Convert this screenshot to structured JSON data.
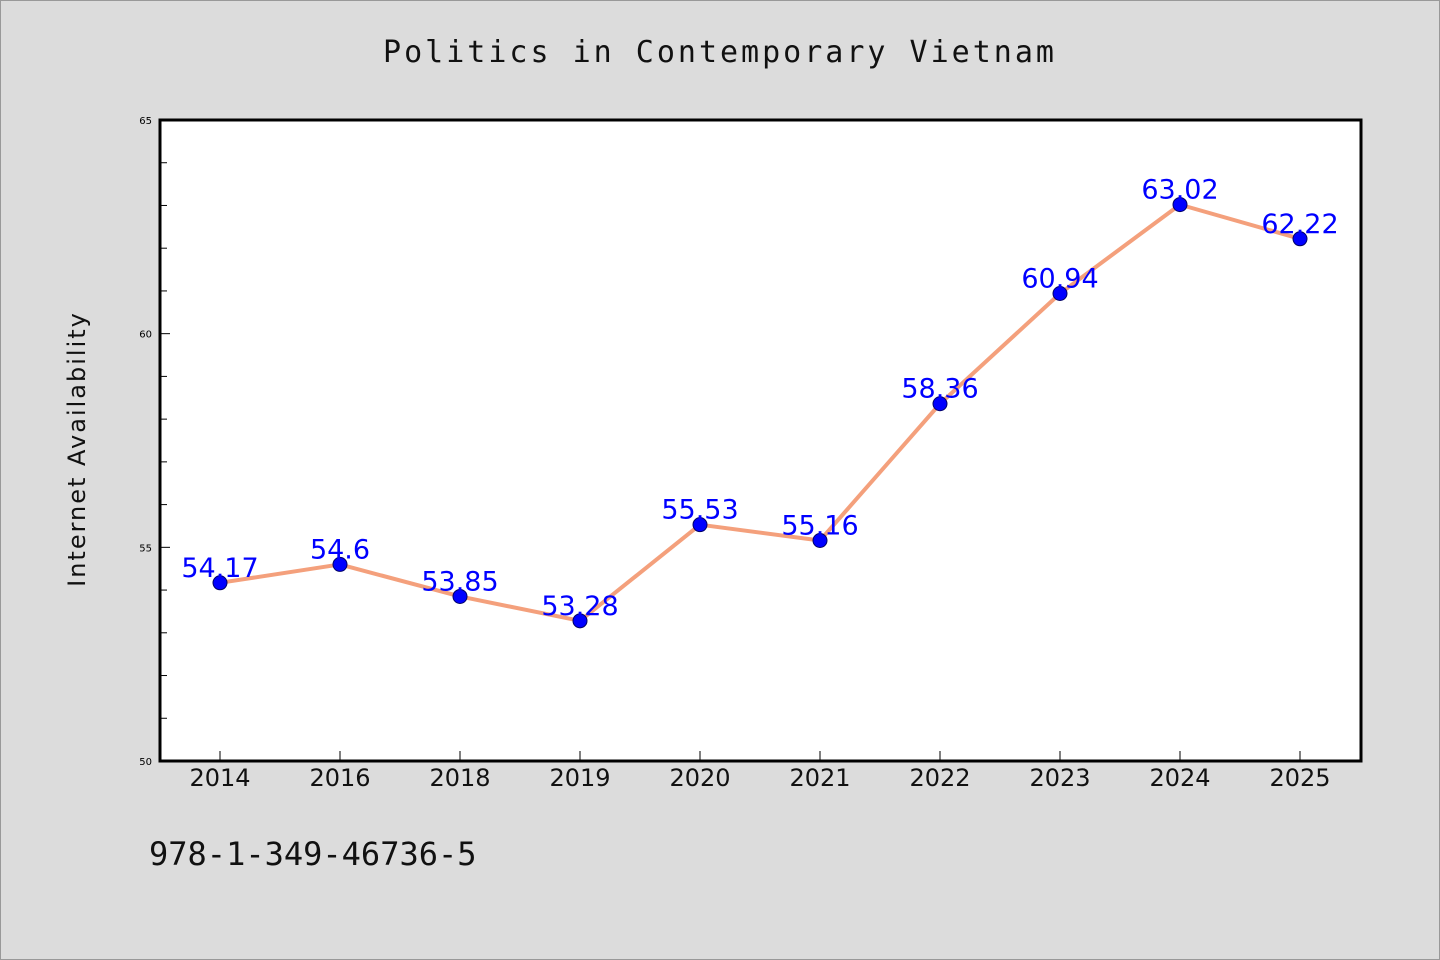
{
  "chart_data": {
    "type": "line",
    "title": "Politics in Contemporary Vietnam",
    "xlabel": "",
    "ylabel": "Internet Availability",
    "categories": [
      "2014",
      "2016",
      "2018",
      "2019",
      "2020",
      "2021",
      "2022",
      "2023",
      "2024",
      "2025"
    ],
    "series": [
      {
        "values": [
          54.17,
          54.6,
          53.85,
          53.28,
          55.53,
          55.16,
          58.36,
          60.94,
          63.02,
          62.22
        ],
        "labels": [
          "54.17",
          "54.6",
          "53.85",
          "53.28",
          "55.53",
          "55.16",
          "58.36",
          "60.94",
          "63.02",
          "62.22"
        ]
      }
    ],
    "ylim": [
      50,
      65
    ],
    "yticks": [
      50,
      55,
      60,
      65
    ],
    "ytick_labels": [
      "50",
      "55",
      "60",
      "65"
    ],
    "grid": false,
    "colors": {
      "line": "#f4a07c",
      "marker": "#0000ff",
      "data_label": "#0000ff",
      "background": "#dcdcdc",
      "plot_background": "#ffffff"
    }
  },
  "footer": {
    "isbn": "978-1-349-46736-5"
  }
}
